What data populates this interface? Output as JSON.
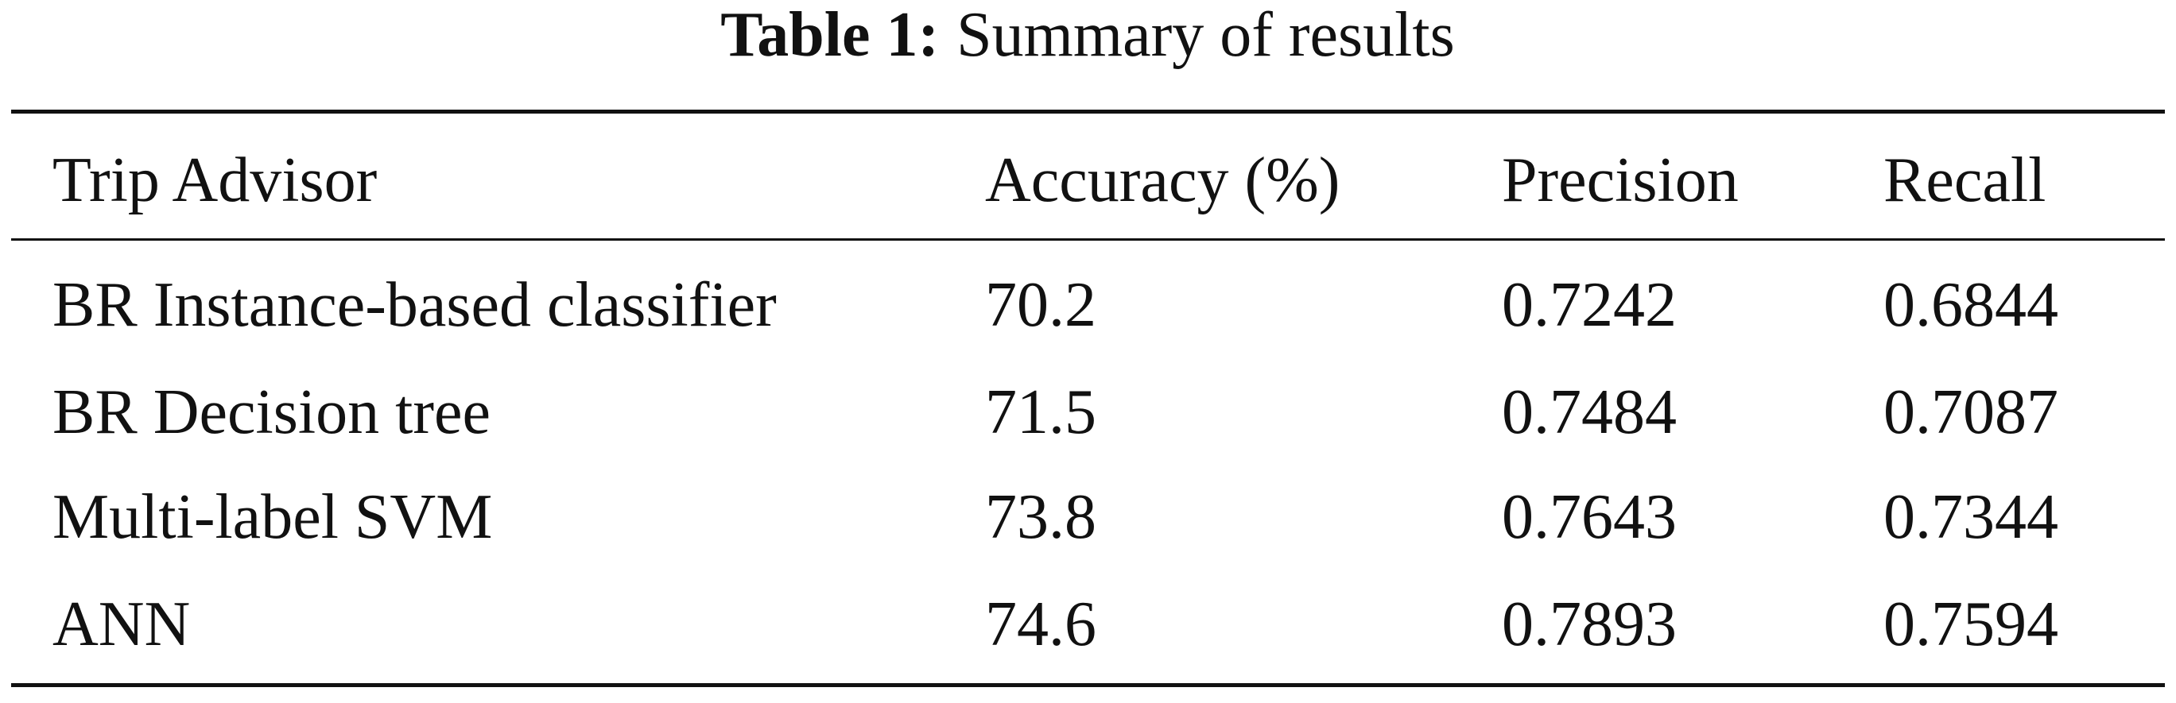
{
  "caption": {
    "label": "Table 1:",
    "text": "Summary of results"
  },
  "table": {
    "header": [
      "Trip Advisor",
      "Accuracy (%)",
      "Precision",
      "Recall"
    ],
    "rows": [
      [
        "BR Instance-based classifier",
        "70.2",
        "0.7242",
        "0.6844"
      ],
      [
        "BR Decision tree",
        "71.5",
        "0.7484",
        "0.7087"
      ],
      [
        "Multi-label SVM",
        "73.8",
        "0.7643",
        "0.7344"
      ],
      [
        "ANN",
        "74.6",
        "0.7893",
        "0.7594"
      ]
    ]
  }
}
